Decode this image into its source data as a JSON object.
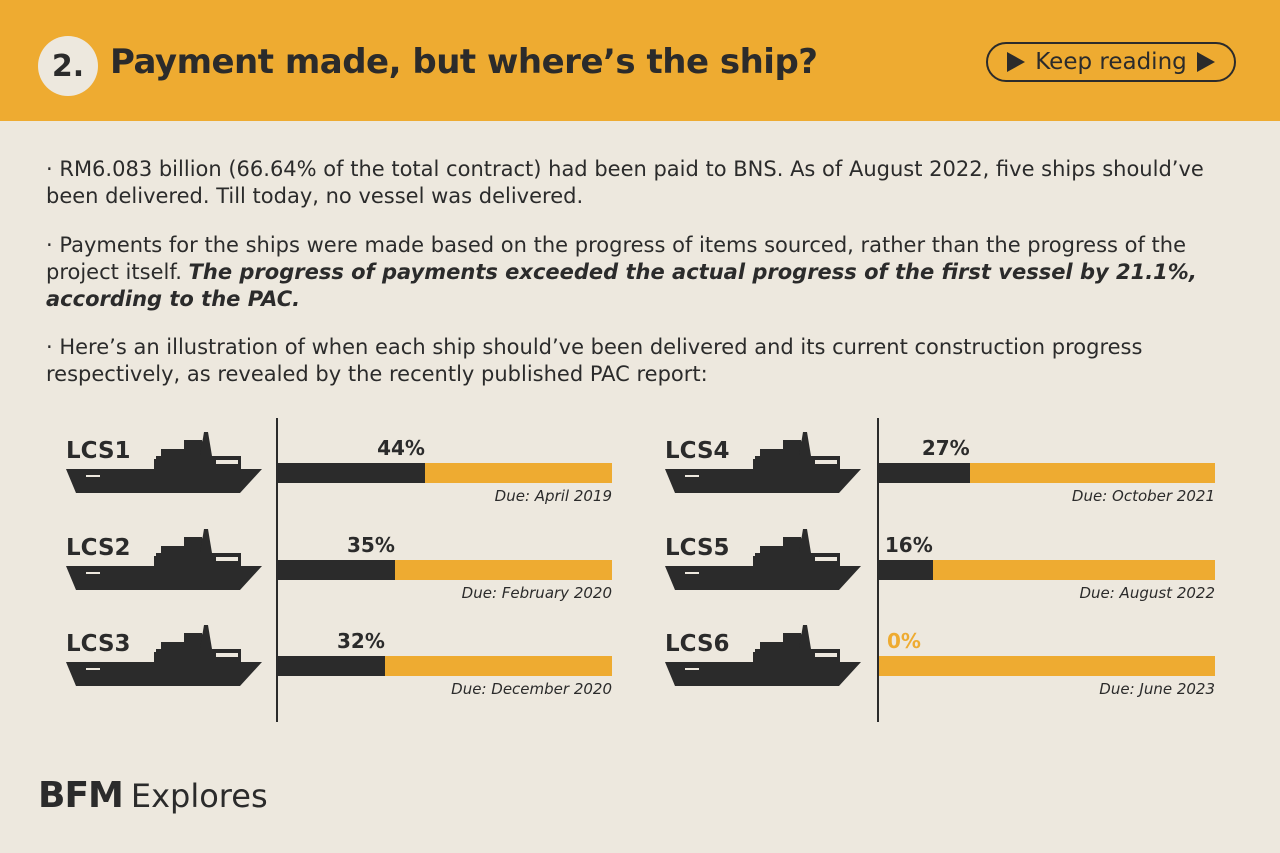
{
  "header": {
    "number": "2.",
    "title": "Payment made, but where’s the ship?",
    "keep_reading": "Keep reading"
  },
  "paragraphs": {
    "p1": "· RM6.083 billion (66.64% of the total contract) had been paid to BNS. As of August 2022, five ships should’ve been delivered. Till today, no vessel was delivered.",
    "p2_plain": "· Payments for the ships were made based on the progress of items sourced, rather than the progress of the project itself. ",
    "p2_bold": "The progress of payments exceeded the actual progress of the first vessel by 21.1%, according to the PAC.",
    "p3": "· Here’s an illustration of when each ship should’ve been delivered and its current construction progress respectively, as revealed by the recently published PAC report:"
  },
  "colors": {
    "accent": "#eeab31",
    "dark": "#2b2b2b",
    "background": "#ede8de"
  },
  "chart_data": {
    "type": "bar",
    "orientation": "horizontal",
    "xlim": [
      0,
      100
    ],
    "unit": "%",
    "categories": [
      "LCS1",
      "LCS2",
      "LCS3",
      "LCS4",
      "LCS5",
      "LCS6"
    ],
    "values": [
      44,
      35,
      32,
      27,
      16,
      0
    ],
    "value_labels": [
      "44%",
      "35%",
      "32%",
      "27%",
      "16%",
      "0%"
    ],
    "due_dates": [
      "Due: April 2019",
      "Due: February 2020",
      "Due: December 2020",
      "Due: October 2021",
      "Due: August 2022",
      "Due: June 2023"
    ],
    "icon": "ship-icon"
  },
  "footer": {
    "brand": "BFM",
    "brand_suffix": "Explores"
  }
}
